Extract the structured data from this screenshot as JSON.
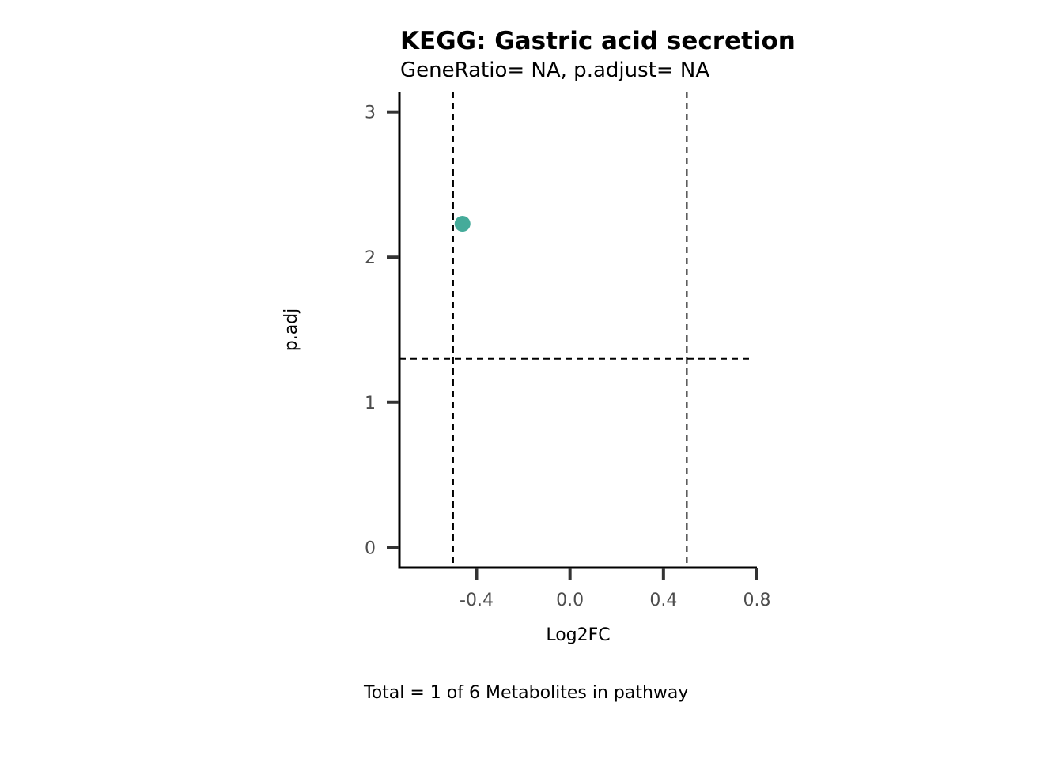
{
  "chart_data": {
    "type": "scatter",
    "title": "KEGG: Gastric acid secretion",
    "subtitle": "GeneRatio= NA, p.adjust= NA",
    "xlabel": "Log2FC",
    "ylabel": "p.adj",
    "caption": "Total = 1 of 6 Metabolites in pathway",
    "xlim": [
      -0.73,
      0.8
    ],
    "ylim": [
      -0.14,
      3.14
    ],
    "x_ticks": [
      -0.4,
      0.0,
      0.4,
      0.8
    ],
    "x_tick_labels": [
      "-0.4",
      "0.0",
      "0.4",
      "0.8"
    ],
    "y_ticks": [
      0,
      1,
      2,
      3
    ],
    "y_tick_labels": [
      "0",
      "1",
      "2",
      "3"
    ],
    "grid": false,
    "points": [
      {
        "x": -0.46,
        "y": 2.23,
        "color": "#45ab9a"
      }
    ],
    "reference_lines": {
      "vertical": [
        -0.5,
        0.5
      ],
      "horizontal": [
        1.3
      ],
      "style": "dashed",
      "color": "#000000"
    },
    "colors": {
      "point": "#45ab9a",
      "axis": "#000000",
      "tick": "#333333"
    }
  }
}
